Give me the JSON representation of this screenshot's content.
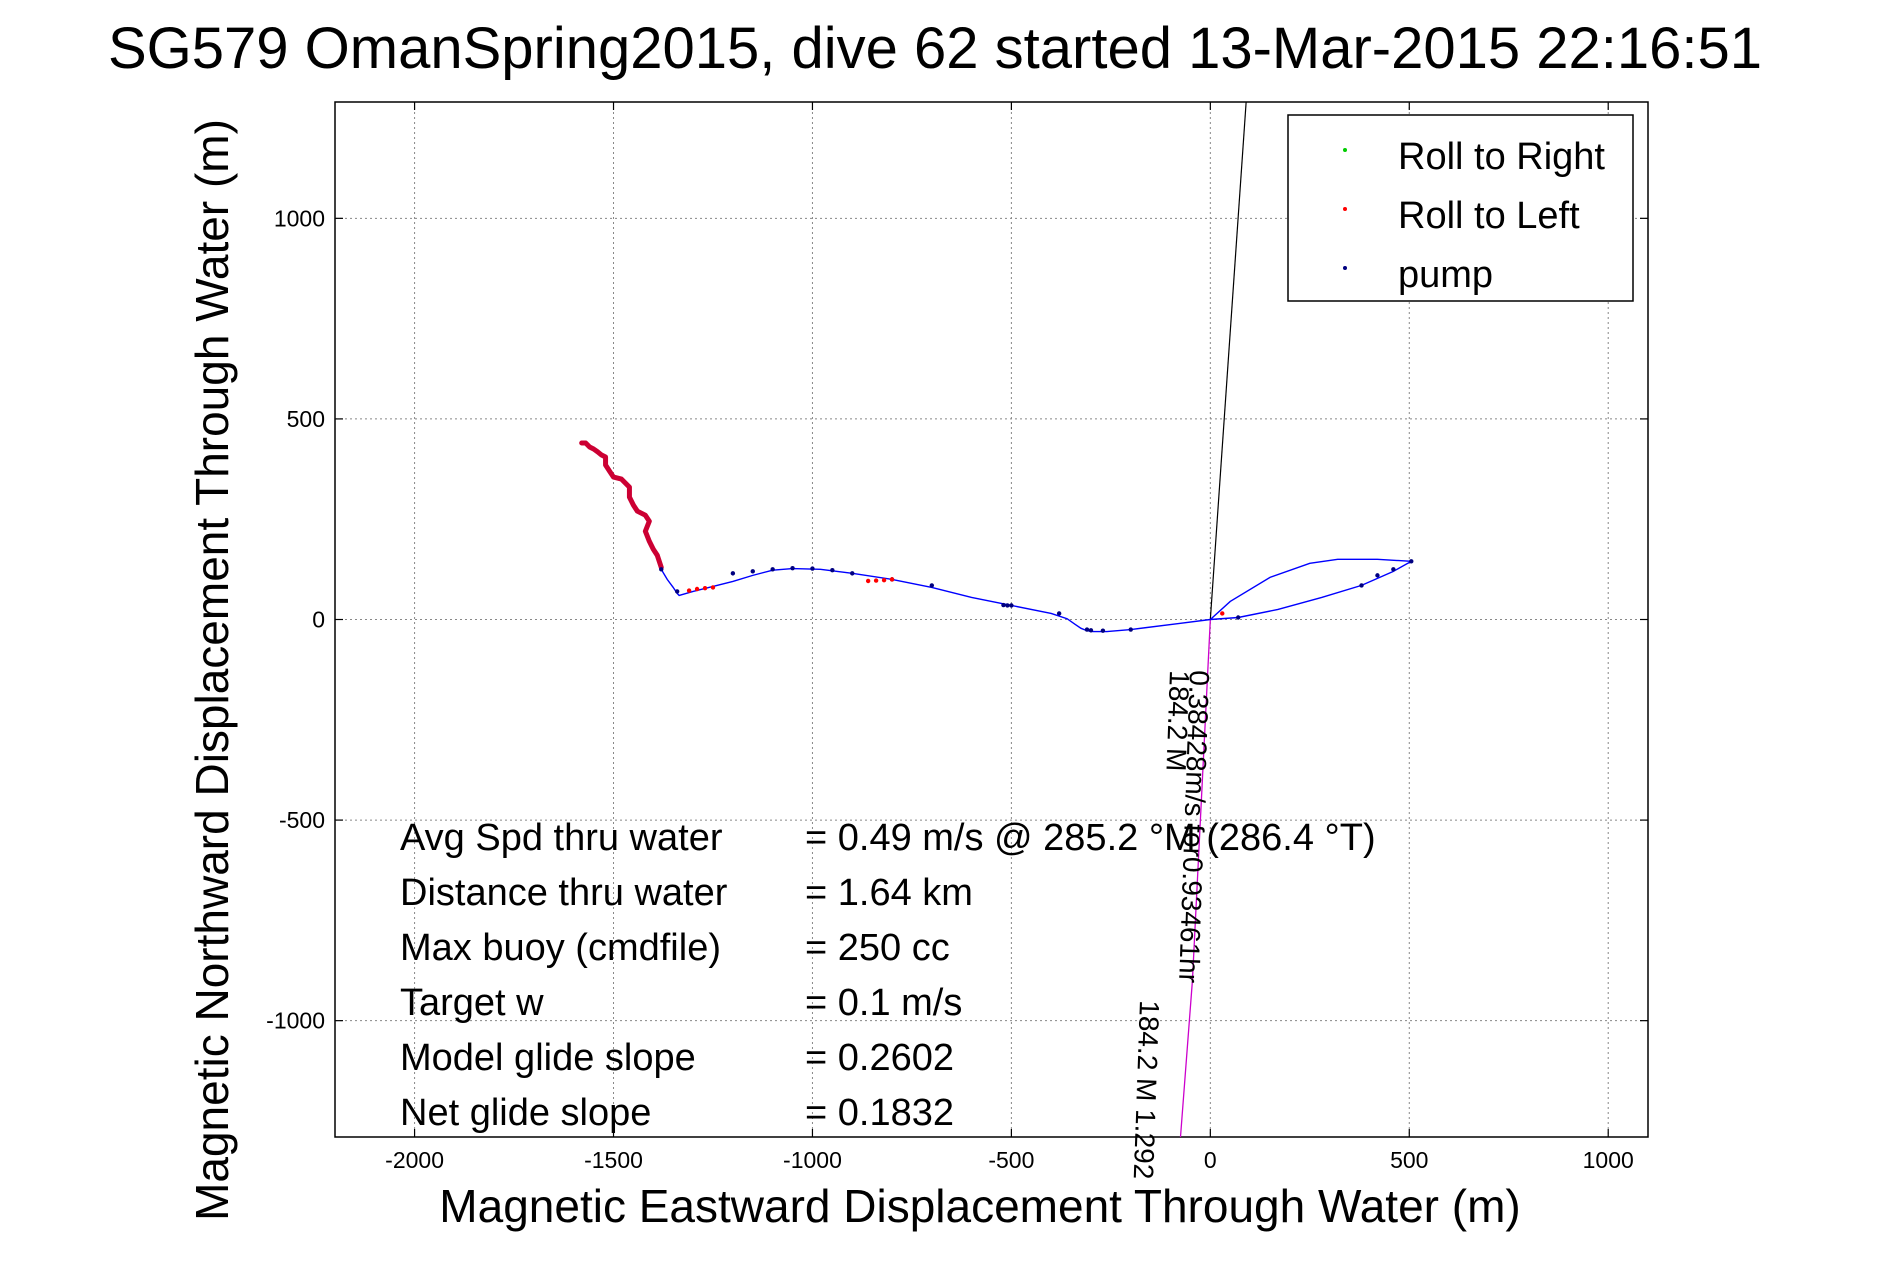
{
  "chart_data": {
    "type": "scatter",
    "title": "SG579 OmanSpring2015, dive 62 started 13-Mar-2015 22:16:51",
    "xlabel": "Magnetic Eastward Displacement Through Water (m)",
    "ylabel": "Magnetic Northward Displacement Through Water (m)",
    "xlim": [
      -2200,
      1100
    ],
    "ylim": [
      -1290,
      1290
    ],
    "xticks": [
      -2000,
      -1500,
      -1000,
      -500,
      0,
      500,
      1000
    ],
    "yticks": [
      -1000,
      -500,
      0,
      500,
      1000
    ],
    "grid": true,
    "legend_position": "top-right",
    "colors": {
      "track": "#0000ff",
      "roll_right": "#00cc00",
      "roll_left": "#ff0000",
      "roll_left_marker": "#cc0033",
      "pump": "#000080",
      "vector_current": "#cc00cc",
      "vector_heading": "#000000"
    },
    "legend": [
      {
        "name": "Roll to Right",
        "color": "#00cc00"
      },
      {
        "name": "Roll to Left",
        "color": "#ff0000"
      },
      {
        "name": "pump",
        "color": "#000080"
      }
    ],
    "track": {
      "x": [
        0,
        50,
        150,
        250,
        320,
        420,
        505,
        460,
        380,
        280,
        170,
        70,
        0,
        -80,
        -200,
        -260,
        -295,
        -310,
        -325,
        -340,
        -360,
        -400,
        -500,
        -600,
        -700,
        -800,
        -900,
        -980,
        -1050,
        -1100,
        -1150,
        -1200,
        -1260,
        -1300,
        -1335,
        -1340,
        -1350,
        -1365,
        -1380
      ],
      "y": [
        0,
        45,
        105,
        140,
        150,
        150,
        145,
        120,
        85,
        55,
        25,
        5,
        0,
        -10,
        -25,
        -30,
        -30,
        -28,
        -22,
        -12,
        2,
        15,
        35,
        55,
        80,
        100,
        115,
        125,
        127,
        123,
        110,
        95,
        80,
        70,
        60,
        65,
        80,
        100,
        125
      ]
    },
    "wiggle": {
      "x": [
        -1380,
        -1390,
        -1400,
        -1410,
        -1420,
        -1410,
        -1420,
        -1440,
        -1450,
        -1460,
        -1460,
        -1470,
        -1480,
        -1500,
        -1510,
        -1520,
        -1520,
        -1530,
        -1540,
        -1550,
        -1560,
        -1560,
        -1570,
        -1580
      ],
      "y": [
        130,
        160,
        175,
        195,
        220,
        245,
        260,
        270,
        285,
        305,
        330,
        340,
        350,
        355,
        370,
        385,
        405,
        410,
        418,
        425,
        430,
        430,
        440,
        440
      ]
    },
    "pump_points": {
      "x": [
        505,
        460,
        420,
        380,
        70,
        -200,
        -270,
        -300,
        -310,
        -380,
        -500,
        -510,
        -520,
        -700,
        -800,
        -900,
        -950,
        -1000,
        -1050,
        -1100,
        -1150,
        -1200,
        -1340,
        -1380
      ],
      "y": [
        145,
        125,
        110,
        85,
        5,
        -25,
        -28,
        -27,
        -25,
        15,
        35,
        35,
        36,
        85,
        100,
        115,
        123,
        127,
        128,
        125,
        120,
        115,
        70,
        125
      ]
    },
    "roll_left_points": {
      "x": [
        30,
        -800,
        -820,
        -840,
        -860,
        -1250,
        -1270,
        -1290,
        -1310
      ],
      "y": [
        15,
        100,
        98,
        97,
        96,
        80,
        78,
        76,
        72
      ]
    },
    "vectors": {
      "current": {
        "x": [
          0,
          -20,
          -45,
          -75
        ],
        "y": [
          0,
          -400,
          -900,
          -1290
        ]
      },
      "heading": {
        "x": [
          0,
          90
        ],
        "y": [
          0,
          1290
        ]
      }
    },
    "annotations": {
      "vector_speed": "0.38428m/s for0.93461hr",
      "vector_heading_a": "184.2 M",
      "vector_heading_b": "184.2 M 1.292"
    },
    "stats": [
      {
        "label": "Avg Spd thru water",
        "value": "=  0.49 m/s @ 285.2 °M (286.4 °T)"
      },
      {
        "label": "Distance thru water",
        "value": "=  1.64 km"
      },
      {
        "label": "Max buoy (cmdfile)",
        "value": "= 250 cc"
      },
      {
        "label": "Target w",
        "value": "= 0.1 m/s"
      },
      {
        "label": "Model glide slope",
        "value": "= 0.2602"
      },
      {
        "label": "Net glide slope",
        "value": "= 0.1832"
      }
    ]
  }
}
